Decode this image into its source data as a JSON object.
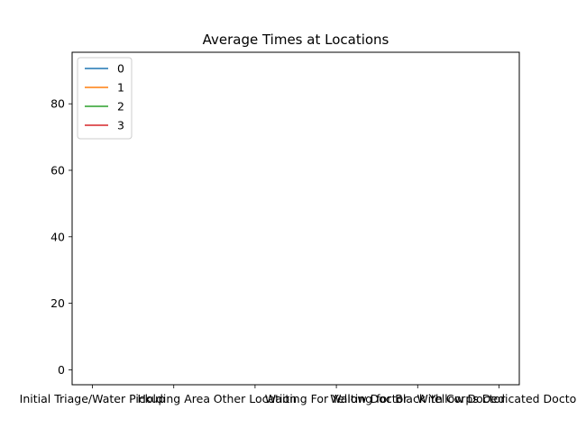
{
  "chart_data": {
    "type": "line",
    "title": "Average Times at Locations",
    "xlabel": "",
    "ylabel": "",
    "categories": [
      "Initial Triage/Water Pickup",
      "Holding Area",
      "Other Location",
      "Waiting For Yellow Doctor",
      "Waiting for Black Yellow Doctor",
      "With Corps Dedicated Doctor"
    ],
    "ylim": [
      -4.5,
      95.5
    ],
    "yticks": [
      0,
      20,
      40,
      60,
      80
    ],
    "grid": false,
    "legend_position": "upper-left",
    "series": [
      {
        "name": "0",
        "color": "#1f77b4",
        "values": [
          null,
          null,
          null,
          null,
          null,
          null
        ]
      },
      {
        "name": "1",
        "color": "#ff7f0e",
        "values": [
          null,
          null,
          null,
          null,
          null,
          null
        ]
      },
      {
        "name": "2",
        "color": "#2ca02c",
        "values": [
          null,
          null,
          null,
          null,
          null,
          null
        ]
      },
      {
        "name": "3",
        "color": "#d62728",
        "values": [
          null,
          null,
          null,
          null,
          null,
          null
        ]
      }
    ]
  }
}
